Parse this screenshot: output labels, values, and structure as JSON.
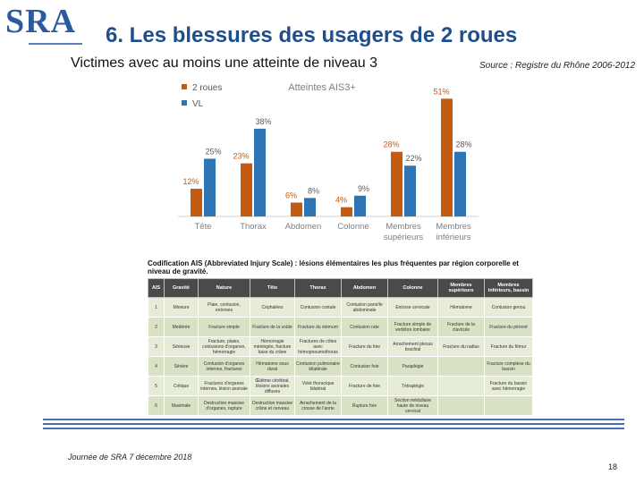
{
  "logo": {
    "text": "SRA"
  },
  "title": "6. Les blessures des usagers de 2 roues",
  "subtitle": "Victimes avec au moins une atteinte de niveau 3",
  "source": "Source : Registre du Rhône 2006-2012",
  "chart_data": {
    "type": "bar",
    "title": "Atteintes AIS3+",
    "categories": [
      [
        "Tête"
      ],
      [
        "Thorax"
      ],
      [
        "Abdomen"
      ],
      [
        "Colonne"
      ],
      [
        "Membres",
        "supérieurs"
      ],
      [
        "Membres",
        "inférieurs"
      ]
    ],
    "series": [
      {
        "name": "2 roues",
        "color": "#c55a11",
        "values": [
          12,
          23,
          6,
          4,
          28,
          51
        ],
        "labels": [
          "12%",
          "23%",
          "6%",
          "4%",
          "28%",
          "51%"
        ]
      },
      {
        "name": "VL",
        "color": "#2e75b6",
        "values": [
          25,
          38,
          8,
          9,
          22,
          28
        ],
        "labels": [
          "25%",
          "38%",
          "8%",
          "9%",
          "22%",
          "28%"
        ]
      }
    ],
    "ylim": [
      0,
      55
    ],
    "legend": "top-left",
    "grid": false
  },
  "table": {
    "caption": "Codification AIS (Abbreviated Injury Scale) : lésions élémentaires les plus fréquentes par région corporelle et niveau de gravité.",
    "headers": [
      "AIS",
      "Gravité",
      "Nature",
      "Tête",
      "Thorax",
      "Abdomen",
      "Colonne",
      "Membres supérieurs",
      "Membres inférieurs, bassin"
    ],
    "rows": [
      [
        "1",
        "Mineure",
        "Plaie, contusion, entorses",
        "Céphalées",
        "Contusion costale",
        "Contusion paroi/le abdominale",
        "Entorse cervicale",
        "Hématome",
        "Contusion genou"
      ],
      [
        "2",
        "Modérée",
        "Fracture simple",
        "Fracture de la voûte",
        "Fracture du sternum",
        "Contusion rate",
        "Fracture simple de vertèbre lombaire",
        "Fracture de la clavicule",
        "Fracture du péroné"
      ],
      [
        "3",
        "Sérieuse",
        "Fracture, plaies, contusions d'organes, hémorragie",
        "Hémorragie méningée, fracture base du crâne",
        "Fractures de côtes avec hémopneumothorax",
        "Fracture du foie",
        "Arrachement plexus brachial",
        "Fracture du radius",
        "Fracture du fémur"
      ],
      [
        "4",
        "Sévère",
        "Contusion d'organes internes, fractures",
        "Hématome sous dural",
        "Contusion pulmonaire bilatérale",
        "Contusion foie",
        "Paraplégie",
        "",
        "Fracture complexe du bassin"
      ],
      [
        "5",
        "Critique",
        "Fractures d'organes internes, lésion axonale",
        "Œdème cérébral, lésions axonales diffuses",
        "Volet thoracique bilatéral",
        "Fracture de foie",
        "Tétraplégie",
        "",
        "Fracture du bassin avec hémorragie"
      ],
      [
        "6",
        "Maximale",
        "Destruction massive d'organes, rupture",
        "Destruction massive crâne et cerveau",
        "Arrachement de la crosse de l'aorte",
        "Rupture foie",
        "Section médullaire haute de niveau cervical",
        "",
        ""
      ]
    ]
  },
  "footer": {
    "text": "Journée de SRA 7 décembre 2018",
    "page": "18"
  }
}
